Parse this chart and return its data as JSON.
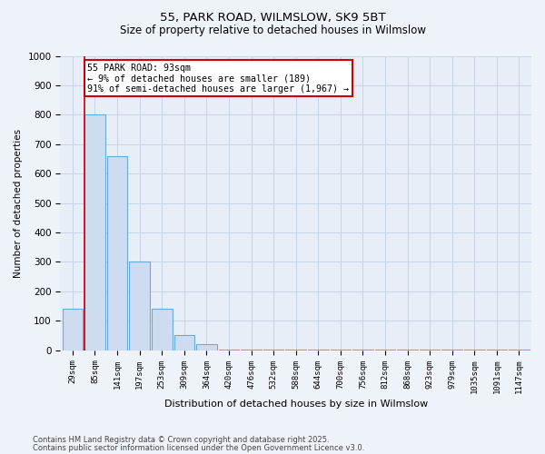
{
  "title1": "55, PARK ROAD, WILMSLOW, SK9 5BT",
  "title2": "Size of property relative to detached houses in Wilmslow",
  "xlabel": "Distribution of detached houses by size in Wilmslow",
  "ylabel": "Number of detached properties",
  "bin_labels": [
    "29sqm",
    "85sqm",
    "141sqm",
    "197sqm",
    "253sqm",
    "309sqm",
    "364sqm",
    "420sqm",
    "476sqm",
    "532sqm",
    "588sqm",
    "644sqm",
    "700sqm",
    "756sqm",
    "812sqm",
    "868sqm",
    "923sqm",
    "979sqm",
    "1035sqm",
    "1091sqm",
    "1147sqm"
  ],
  "bar_values": [
    140,
    800,
    660,
    300,
    140,
    50,
    20,
    3,
    2,
    2,
    2,
    2,
    2,
    2,
    2,
    2,
    2,
    2,
    2,
    2,
    2
  ],
  "bar_color": "#cddcf0",
  "bar_edge_color": "#6aaad4",
  "ylim": [
    0,
    1000
  ],
  "annotation_text": "55 PARK ROAD: 93sqm\n← 9% of detached houses are smaller (189)\n91% of semi-detached houses are larger (1,967) →",
  "annotation_box_color": "#ffffff",
  "annotation_box_edge": "#cc0000",
  "red_line_color": "#cc0000",
  "footer1": "Contains HM Land Registry data © Crown copyright and database right 2025.",
  "footer2": "Contains public sector information licensed under the Open Government Licence v3.0.",
  "bg_color": "#eef3fa",
  "plot_bg_color": "#e8eef8",
  "grid_color": "#c8d4e8"
}
